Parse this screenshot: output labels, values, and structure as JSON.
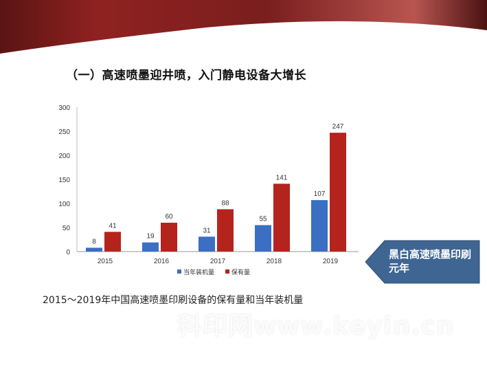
{
  "slide": {
    "title": "（一）高速喷墨迎井喷，入门静电设备大增长",
    "caption": "2015～2019年中国高速喷墨印刷设备的保有量和当年装机量",
    "callout": "黑白高速喷墨印刷元年",
    "watermark": "科印网www.keyin.cn",
    "colors": {
      "banner": "#8a2020",
      "callout": "#3f6592"
    }
  },
  "chart_data": {
    "type": "bar",
    "categories": [
      "2015",
      "2016",
      "2017",
      "2018",
      "2019"
    ],
    "series": [
      {
        "name": "当年装机量",
        "values": [
          8,
          19,
          31,
          55,
          107
        ],
        "color": "#3a6fc4"
      },
      {
        "name": "保有量",
        "values": [
          41,
          60,
          88,
          141,
          247
        ],
        "color": "#b5231d"
      }
    ],
    "ylim": [
      0,
      300
    ],
    "yticks": [
      "0",
      "50",
      "100",
      "150",
      "200",
      "250",
      "300"
    ],
    "grid": false,
    "data_labels": true,
    "legend": "bottom"
  }
}
